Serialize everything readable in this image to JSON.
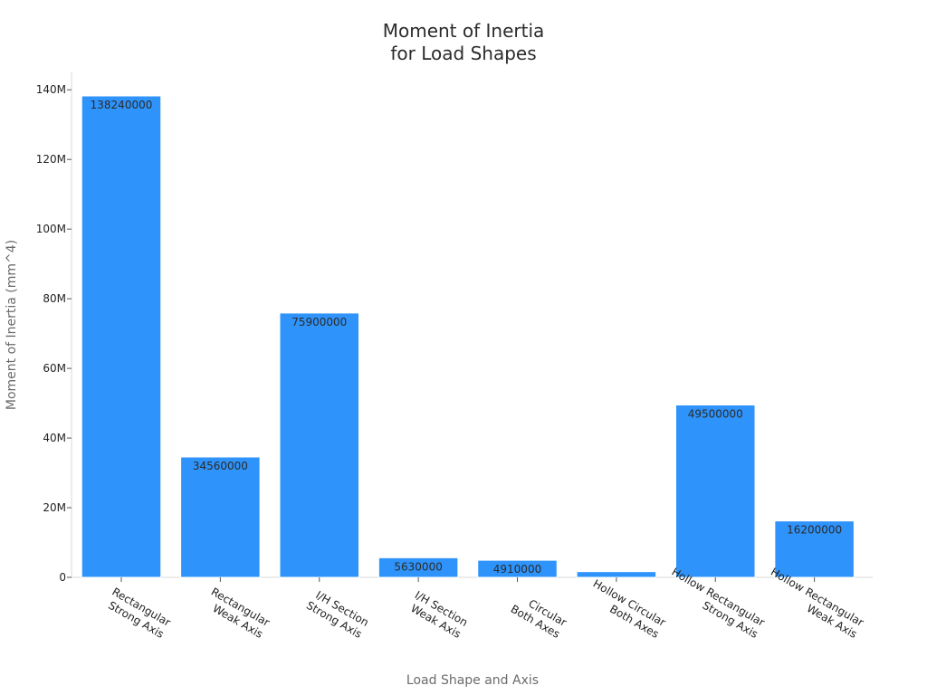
{
  "chart_data": {
    "type": "bar",
    "title": [
      "Moment of Inertia",
      "for Load Shapes"
    ],
    "xlabel": "Load Shape and Axis",
    "ylabel": "Moment of Inertia (mm^4)",
    "ylim": [
      0,
      145000000
    ],
    "yticks": [
      {
        "value": 0,
        "label": "0"
      },
      {
        "value": 20000000,
        "label": "20M"
      },
      {
        "value": 40000000,
        "label": "40M"
      },
      {
        "value": 60000000,
        "label": "60M"
      },
      {
        "value": 80000000,
        "label": "80M"
      },
      {
        "value": 100000000,
        "label": "100M"
      },
      {
        "value": 120000000,
        "label": "120M"
      },
      {
        "value": 140000000,
        "label": "140M"
      }
    ],
    "categories": [
      [
        "Rectangular",
        "Strong Axis"
      ],
      [
        "Rectangular",
        "Weak Axis"
      ],
      [
        "I/H Section",
        "Strong Axis"
      ],
      [
        "I/H Section",
        "Weak Axis"
      ],
      [
        "Circular",
        "Both Axes"
      ],
      [
        "Hollow Circular",
        "Both Axes"
      ],
      [
        "Hollow Rectangular",
        "Strong Axis"
      ],
      [
        "Hollow Rectangular",
        "Weak Axis"
      ]
    ],
    "values": [
      138240000,
      34560000,
      75900000,
      5630000,
      4910000,
      1640000,
      49500000,
      16200000
    ],
    "data_labels": [
      "138240000",
      "34560000",
      "75900000",
      "5630000",
      "4910000",
      "",
      "49500000",
      "16200000"
    ],
    "bar_color": "#2e93fa",
    "bar_edge_color": "#ffffff",
    "grid": false,
    "legend": "none"
  }
}
